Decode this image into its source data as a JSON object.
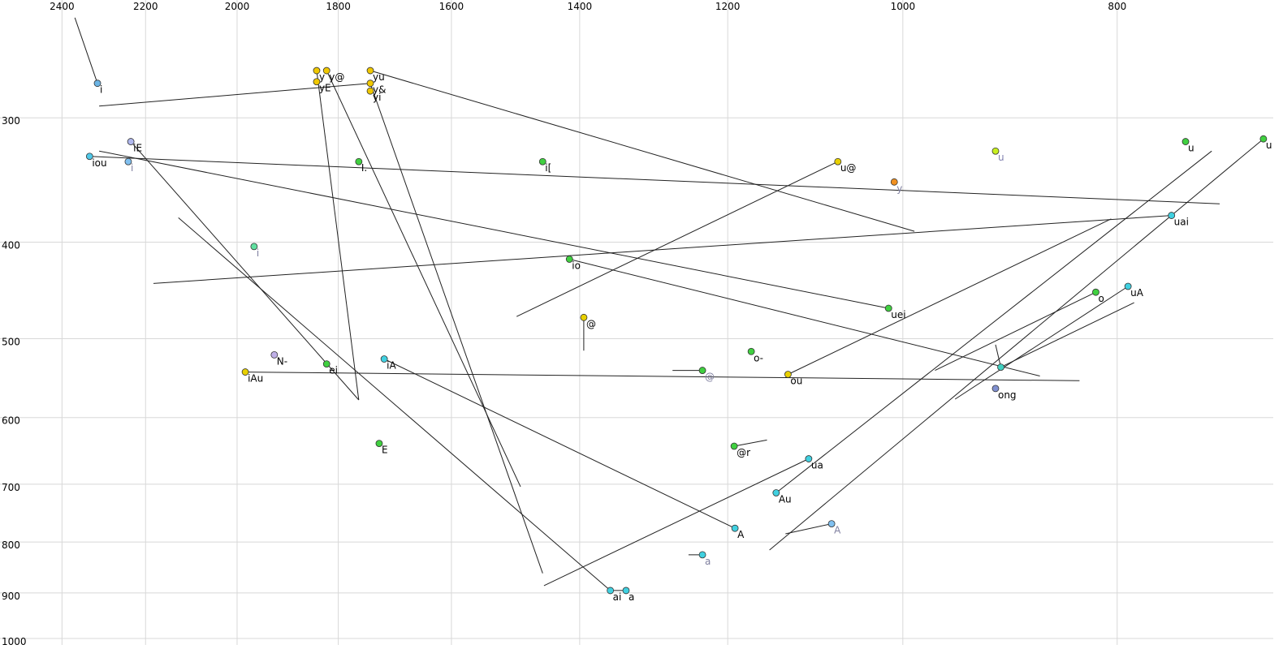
{
  "chart_data": {
    "type": "scatter",
    "xscale": "log",
    "yscale": "log",
    "x_reversed": true,
    "xlim": [
      2560,
      680
    ],
    "ylim": [
      235,
      1015
    ],
    "xticks": [
      2400,
      2200,
      2000,
      1800,
      1600,
      1400,
      1200,
      1000,
      800
    ],
    "yticks": [
      300,
      400,
      500,
      600,
      700,
      800,
      900,
      1000
    ],
    "grid": true,
    "track_color": "#222222",
    "x": [
      2313,
      1841,
      1822,
      1841,
      1741,
      1741,
      1741,
      2234,
      2332,
      2240,
      1762,
      1455,
      1070,
      908,
      745,
      687,
      1009,
      1965,
      1415,
      756,
      1015,
      818,
      791,
      1394,
      1924,
      1171,
      1822,
      1716,
      1983,
      1232,
      1127,
      903,
      908,
      1725,
      1192,
      1103,
      1141,
      1191,
      1077,
      1232,
      1356,
      1334
    ],
    "y": [
      277,
      269,
      269,
      276,
      269,
      277,
      282,
      317,
      328,
      332,
      332,
      332,
      332,
      324,
      317,
      315,
      348,
      404,
      416,
      376,
      466,
      449,
      443,
      476,
      519,
      515,
      530,
      524,
      540,
      538,
      543,
      534,
      561,
      637,
      641,
      660,
      714,
      775,
      767,
      824,
      895,
      895
    ],
    "labels": [
      "i",
      "y",
      "y@",
      "yE",
      "yu",
      "y&",
      "yi",
      "iE",
      "iou",
      "i",
      "I.",
      "i[",
      "u@",
      "u",
      "u",
      "u",
      "y",
      "i",
      "io",
      "uai",
      "uei",
      "o",
      "uA",
      "@",
      "N-",
      "o-",
      "ei",
      "iA",
      "iAu",
      "@",
      "ou",
      null,
      "ong",
      "E",
      "@r",
      "ua",
      "Au",
      "A",
      "A",
      "a",
      "ai",
      "a"
    ],
    "colors": [
      "#6cb4e4",
      "#f0c800",
      "#f0c800",
      "#f0c800",
      "#f0c800",
      "#f0c800",
      "#f0c800",
      "#b0b8ee",
      "#50c8e8",
      "#80c0f0",
      "#40d040",
      "#40d040",
      "#e8d000",
      "#c8f020",
      "#40d040",
      "#40d040",
      "#f09020",
      "#60e0a0",
      "#40d040",
      "#40d0e0",
      "#40d040",
      "#40d040",
      "#40d0e0",
      "#e8d000",
      "#c0b0e8",
      "#40d040",
      "#40d040",
      "#40d0e0",
      "#e8d000",
      "#40d040",
      "#e8d000",
      "#40d0c0",
      "#8090d0",
      "#40d040",
      "#40d040",
      "#40d0e0",
      "#40d0e0",
      "#40d0e0",
      "#80c0f0",
      "#40d0e0",
      "#40d0e0",
      "#40d0e0"
    ],
    "label_colors": [
      "#000000",
      "#000000",
      "#000000",
      "#000000",
      "#000000",
      "#000000",
      "#000000",
      "#000000",
      "#000000",
      "#8080a0",
      "#000000",
      "#000000",
      "#000000",
      "#8080b0",
      "#000000",
      "#000000",
      "#8080a0",
      "#8080a0",
      "#000000",
      "#000000",
      "#000000",
      "#000000",
      "#000000",
      "#000000",
      "#000000",
      "#000000",
      "#000000",
      "#000000",
      "#000000",
      "#8080a0",
      "#000000",
      "#000000",
      "#000000",
      "#000000",
      "#000000",
      "#000000",
      "#000000",
      "#000000",
      "#8080a0",
      "#8080a0",
      "#000000",
      "#000000"
    ],
    "tracks": [
      {
        "x": [
          2368,
          2313
        ],
        "y": [
          238,
          277
        ]
      },
      {
        "x": [
          2309,
          1741
        ],
        "y": [
          292,
          277
        ]
      },
      {
        "x": [
          1841,
          1762
        ],
        "y": [
          269,
          576
        ]
      },
      {
        "x": [
          1822,
          1489
        ],
        "y": [
          269,
          704
        ]
      },
      {
        "x": [
          1741,
          988
        ],
        "y": [
          269,
          390
        ]
      },
      {
        "x": [
          1741,
          1455
        ],
        "y": [
          277,
          860
        ]
      },
      {
        "x": [
          2332,
          719
        ],
        "y": [
          328,
          366
        ]
      },
      {
        "x": [
          2309,
          1015
        ],
        "y": [
          324,
          466
        ]
      },
      {
        "x": [
          2234,
          1762
        ],
        "y": [
          317,
          576
        ]
      },
      {
        "x": [
          2126,
          1356
        ],
        "y": [
          378,
          895
        ]
      },
      {
        "x": [
          2182,
          756
        ],
        "y": [
          440,
          376
        ]
      },
      {
        "x": [
          1495,
          1070
        ],
        "y": [
          475,
          332
        ]
      },
      {
        "x": [
          1415,
          867
        ],
        "y": [
          416,
          545
        ]
      },
      {
        "x": [
          1983,
          832
        ],
        "y": [
          540,
          551
        ]
      },
      {
        "x": [
          1716,
          1191
        ],
        "y": [
          524,
          775
        ]
      },
      {
        "x": [
          1394,
          1394
        ],
        "y": [
          476,
          514
        ]
      },
      {
        "x": [
          1271,
          1232
        ],
        "y": [
          538,
          538
        ]
      },
      {
        "x": [
          1127,
          805
        ],
        "y": [
          543,
          379
        ]
      },
      {
        "x": [
          967,
          818
        ],
        "y": [
          538,
          449
        ]
      },
      {
        "x": [
          947,
          791
        ],
        "y": [
          575,
          443
        ]
      },
      {
        "x": [
          903,
          786
        ],
        "y": [
          534,
          460
        ]
      },
      {
        "x": [
          1149,
          687
        ],
        "y": [
          815,
          315
        ]
      },
      {
        "x": [
          1141,
          725
        ],
        "y": [
          714,
          324
        ]
      },
      {
        "x": [
          1453,
          1103
        ],
        "y": [
          885,
          660
        ]
      },
      {
        "x": [
          1192,
          1152
        ],
        "y": [
          641,
          632
        ]
      },
      {
        "x": [
          1130,
          1077
        ],
        "y": [
          785,
          767
        ]
      },
      {
        "x": [
          1250,
          1232
        ],
        "y": [
          824,
          824
        ]
      },
      {
        "x": [
          1356,
          1334
        ],
        "y": [
          895,
          895
        ]
      },
      {
        "x": [
          908,
          903
        ],
        "y": [
          507,
          534
        ]
      }
    ]
  }
}
